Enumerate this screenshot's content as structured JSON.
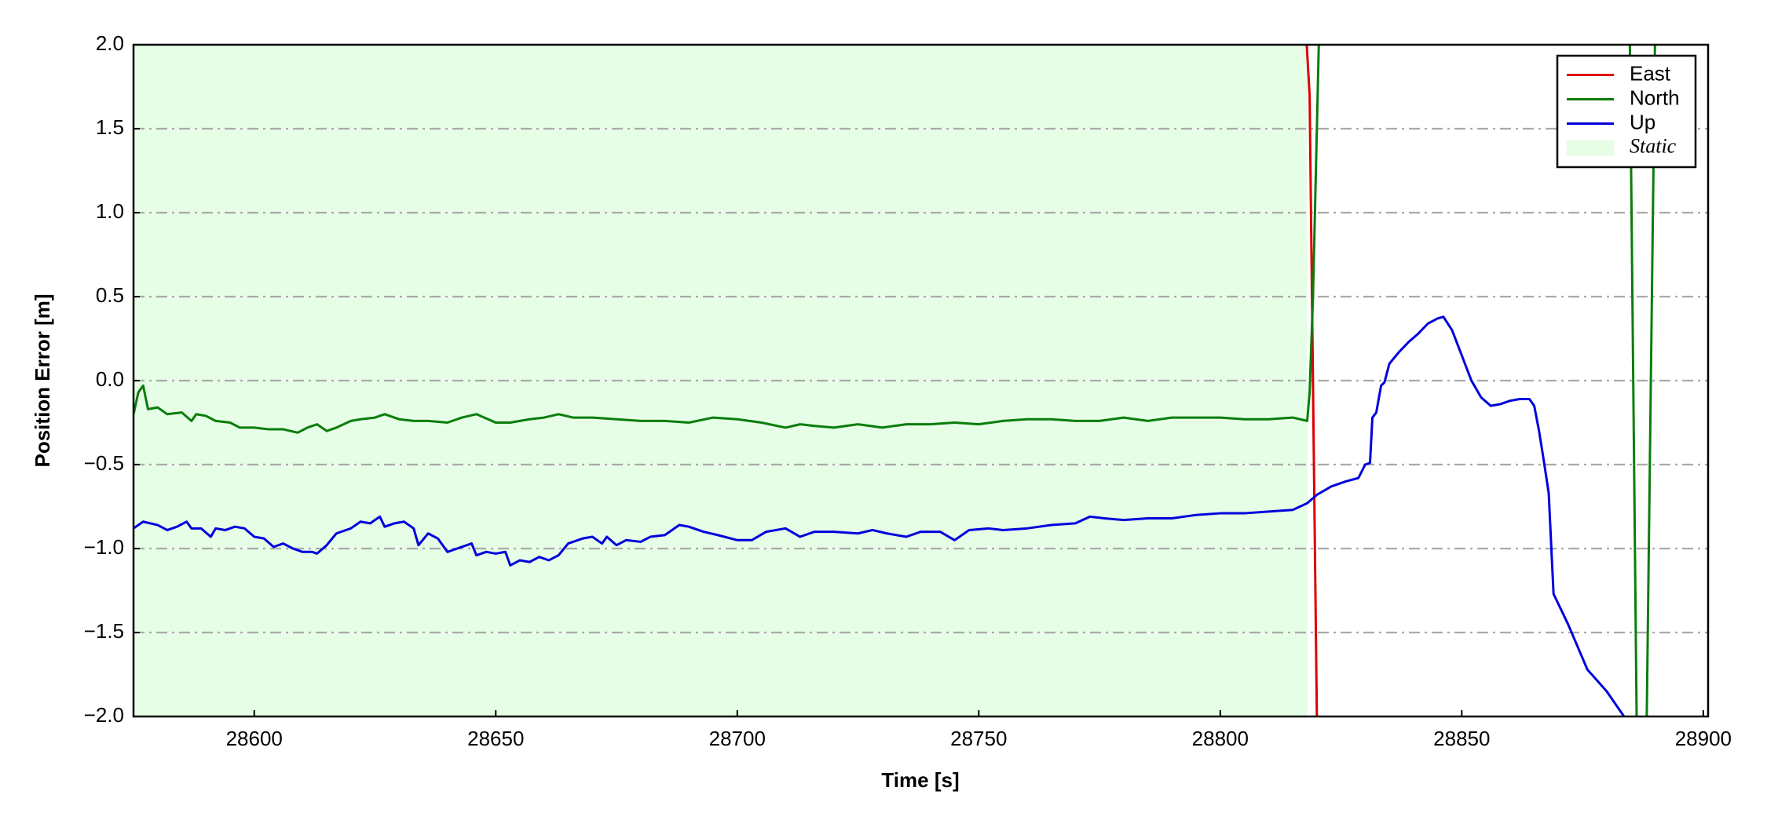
{
  "chart_data": {
    "type": "line",
    "xlabel": "Time [s]",
    "ylabel": "Position Error [m]",
    "xlim": [
      28575,
      28901
    ],
    "xticks": [
      28600,
      28650,
      28700,
      28750,
      28800,
      28850,
      28900
    ],
    "ylim": [
      -2,
      2
    ],
    "yticks": [
      {
        "value": -2,
        "label": "−2.0"
      },
      {
        "value": -1.5,
        "label": "−1.5"
      },
      {
        "value": -1,
        "label": "−1.0"
      },
      {
        "value": -0.5,
        "label": "−0.5"
      },
      {
        "value": 0,
        "label": "0.0"
      },
      0.5,
      {
        "value": 1,
        "label": "1.0"
      },
      1.5,
      {
        "value": 2,
        "label": "2.0"
      }
    ],
    "grid": true,
    "legend": "upper right",
    "shaded_region": {
      "name": "Static",
      "x0": 28575,
      "x1": 28818,
      "color": "#e6fde6"
    },
    "series": [
      {
        "name": "East",
        "color": "#dd0000",
        "x": [
          28817.9,
          28818.5,
          28820
        ],
        "values": [
          2.0,
          1.7,
          -2.0
        ]
      },
      {
        "name": "North",
        "color": "#0a7d0a",
        "x": [
          28575,
          28576,
          28577,
          28578,
          28580,
          28582,
          28585,
          28587,
          28588,
          28590,
          28592,
          28595,
          28597,
          28600,
          28603,
          28606,
          28609,
          28611,
          28613,
          28615,
          28617,
          28620,
          28622,
          28625,
          28627,
          28630,
          28633,
          28636,
          28640,
          28643,
          28646,
          28650,
          28653,
          28657,
          28660,
          28663,
          28666,
          28670,
          28675,
          28680,
          28685,
          28690,
          28695,
          28700,
          28705,
          28710,
          28713,
          28716,
          28720,
          28725,
          28730,
          28735,
          28740,
          28745,
          28750,
          28755,
          28760,
          28765,
          28770,
          28775,
          28780,
          28785,
          28790,
          28795,
          28800,
          28805,
          28810,
          28815,
          28818,
          28818.5,
          28819.2,
          28820.4,
          28852,
          28884.8,
          28886.2,
          28887,
          28888.3,
          28890
        ],
        "values": [
          -0.2,
          -0.07,
          -0.03,
          -0.17,
          -0.16,
          -0.2,
          -0.19,
          -0.24,
          -0.2,
          -0.21,
          -0.24,
          -0.25,
          -0.28,
          -0.28,
          -0.29,
          -0.29,
          -0.31,
          -0.28,
          -0.26,
          -0.3,
          -0.28,
          -0.24,
          -0.23,
          -0.22,
          -0.2,
          -0.23,
          -0.24,
          -0.24,
          -0.25,
          -0.22,
          -0.2,
          -0.25,
          -0.25,
          -0.23,
          -0.22,
          -0.2,
          -0.22,
          -0.22,
          -0.23,
          -0.24,
          -0.24,
          -0.25,
          -0.22,
          -0.23,
          -0.25,
          -0.28,
          -0.26,
          -0.27,
          -0.28,
          -0.26,
          -0.28,
          -0.26,
          -0.26,
          -0.25,
          -0.26,
          -0.24,
          -0.23,
          -0.23,
          -0.24,
          -0.24,
          -0.22,
          -0.24,
          -0.22,
          -0.22,
          -0.22,
          -0.23,
          -0.23,
          -0.22,
          -0.24,
          -0.07,
          0.5,
          2.0,
          null,
          2.0,
          -2.0,
          null,
          -2.0,
          2.0
        ]
      },
      {
        "name": "Up",
        "color": "#0000dd",
        "x": [
          28575,
          28577,
          28580,
          28582,
          28584,
          28586,
          28587,
          28589,
          28591,
          28592,
          28594,
          28596,
          28598,
          28600,
          28602,
          28604,
          28606,
          28608,
          28610,
          28612,
          28613,
          28615,
          28617,
          28620,
          28622,
          28624,
          28626,
          28627,
          28629,
          28631,
          28633,
          28634,
          28636,
          28638,
          28640,
          28642,
          28645,
          28646,
          28648,
          28650,
          28652,
          28653,
          28655,
          28657,
          28659,
          28661,
          28663,
          28665,
          28668,
          28670,
          28672,
          28673,
          28675,
          28677,
          28680,
          28682,
          28685,
          28688,
          28690,
          28693,
          28696,
          28700,
          28703,
          28706,
          28710,
          28713,
          28716,
          28720,
          28725,
          28728,
          28731,
          28735,
          28738,
          28742,
          28745,
          28748,
          28752,
          28755,
          28760,
          28765,
          28770,
          28773,
          28776,
          28780,
          28785,
          28790,
          28795,
          28800,
          28805,
          28810,
          28815,
          28818,
          28820,
          28823,
          28826,
          28828.6,
          28830,
          28831,
          28831.5,
          28832.3,
          28833.3,
          28834,
          28835,
          28837,
          28839,
          28841,
          28843,
          28845,
          28846.2,
          28848,
          28850,
          28852,
          28854,
          28856,
          28858,
          28860,
          28862,
          28864,
          28865,
          28866,
          28867,
          28868,
          28869,
          28872,
          28876,
          28880,
          28883.6
        ],
        "values": [
          -0.88,
          -0.84,
          -0.86,
          -0.89,
          -0.87,
          -0.84,
          -0.88,
          -0.88,
          -0.93,
          -0.88,
          -0.89,
          -0.87,
          -0.88,
          -0.93,
          -0.94,
          -0.99,
          -0.97,
          -1.0,
          -1.02,
          -1.02,
          -1.03,
          -0.98,
          -0.91,
          -0.88,
          -0.84,
          -0.85,
          -0.81,
          -0.87,
          -0.85,
          -0.84,
          -0.88,
          -0.98,
          -0.91,
          -0.94,
          -1.02,
          -1.0,
          -0.97,
          -1.04,
          -1.02,
          -1.03,
          -1.02,
          -1.1,
          -1.07,
          -1.08,
          -1.05,
          -1.07,
          -1.04,
          -0.97,
          -0.94,
          -0.93,
          -0.97,
          -0.93,
          -0.98,
          -0.95,
          -0.96,
          -0.93,
          -0.92,
          -0.86,
          -0.87,
          -0.9,
          -0.92,
          -0.95,
          -0.95,
          -0.9,
          -0.88,
          -0.93,
          -0.9,
          -0.9,
          -0.91,
          -0.89,
          -0.91,
          -0.93,
          -0.9,
          -0.9,
          -0.95,
          -0.89,
          -0.88,
          -0.89,
          -0.88,
          -0.86,
          -0.85,
          -0.81,
          -0.82,
          -0.83,
          -0.82,
          -0.82,
          -0.8,
          -0.79,
          -0.79,
          -0.78,
          -0.77,
          -0.73,
          -0.68,
          -0.63,
          -0.6,
          -0.58,
          -0.5,
          -0.49,
          -0.22,
          -0.19,
          -0.03,
          -0.01,
          0.1,
          0.17,
          0.23,
          0.28,
          0.34,
          0.37,
          0.38,
          0.3,
          0.15,
          0.0,
          -0.1,
          -0.15,
          -0.14,
          -0.12,
          -0.11,
          -0.11,
          -0.15,
          -0.3,
          -0.48,
          -0.67,
          -1.27,
          -1.45,
          -1.72,
          -1.85,
          -2.0
        ]
      }
    ]
  }
}
